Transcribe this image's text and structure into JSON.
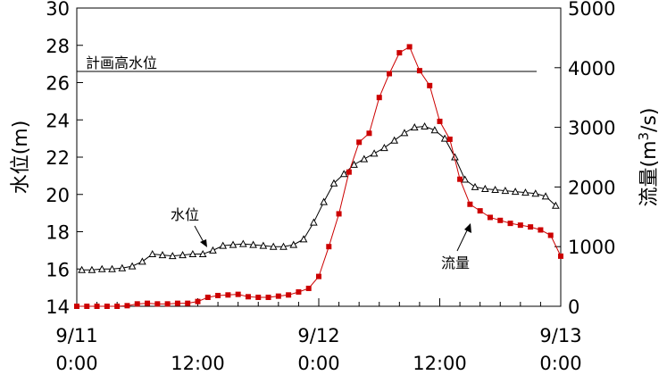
{
  "chart_data": {
    "type": "line",
    "y_left": {
      "label": "水位(m)",
      "min": 14,
      "max": 30,
      "ticks": [
        14,
        16,
        18,
        20,
        22,
        24,
        26,
        28,
        30
      ]
    },
    "y_right": {
      "label_main": "流量(m",
      "label_sup": "3",
      "label_tail": "/s)",
      "min": 0,
      "max": 5000,
      "ticks": [
        0,
        1000,
        2000,
        3000,
        4000,
        5000
      ]
    },
    "x_axis": {
      "min": 0,
      "max": 48,
      "ticks": [
        {
          "x": 0,
          "lines": [
            "9/11",
            "0:00"
          ]
        },
        {
          "x": 12,
          "lines": [
            "",
            "12:00"
          ]
        },
        {
          "x": 24,
          "lines": [
            "9/12",
            "0:00"
          ]
        },
        {
          "x": 36,
          "lines": [
            "",
            "12:00"
          ]
        },
        {
          "x": 48,
          "lines": [
            "9/13",
            "0:00"
          ]
        }
      ]
    },
    "reference_line": {
      "label": "計画高水位",
      "y": 26.6
    },
    "series": [
      {
        "name": "水位",
        "axis": "left",
        "marker": "triangle",
        "color": "#000000",
        "x": [
          0.5,
          1.5,
          2.5,
          3.5,
          4.5,
          5.5,
          6.5,
          7.5,
          8.5,
          9.5,
          10.5,
          11.5,
          12.5,
          13.5,
          14.5,
          15.5,
          16.5,
          17.5,
          18.5,
          19.5,
          20.5,
          21.5,
          22.5,
          23.5,
          24.5,
          25.5,
          26.5,
          27.5,
          28.5,
          29.5,
          30.5,
          31.5,
          32.5,
          33.5,
          34.5,
          35.5,
          36.5,
          37.5,
          38.5,
          39.5,
          40.5,
          41.5,
          42.5,
          43.5,
          44.5,
          45.5,
          46.5,
          47.5
        ],
        "values": [
          15.95,
          15.95,
          16.0,
          16.0,
          16.05,
          16.15,
          16.4,
          16.8,
          16.75,
          16.7,
          16.75,
          16.8,
          16.8,
          17.0,
          17.25,
          17.3,
          17.35,
          17.3,
          17.25,
          17.2,
          17.2,
          17.3,
          17.6,
          18.5,
          19.6,
          20.6,
          21.1,
          21.6,
          21.9,
          22.2,
          22.5,
          22.9,
          23.3,
          23.6,
          23.65,
          23.45,
          23.0,
          22.0,
          20.8,
          20.4,
          20.3,
          20.25,
          20.2,
          20.15,
          20.1,
          20.05,
          19.9,
          19.4
        ]
      },
      {
        "name": "流量",
        "axis": "right",
        "marker": "square",
        "color": "#cc0000",
        "x": [
          0,
          1,
          2,
          3,
          4,
          5,
          6,
          7,
          8,
          9,
          10,
          11,
          12,
          13,
          14,
          15,
          16,
          17,
          18,
          19,
          20,
          21,
          22,
          23,
          24,
          25,
          26,
          27,
          28,
          29,
          30,
          31,
          32,
          33,
          34,
          35,
          36,
          37,
          38,
          39,
          40,
          41,
          42,
          43,
          44,
          45,
          46,
          47,
          48
        ],
        "values": [
          0,
          0,
          0,
          0,
          0,
          10,
          40,
          50,
          40,
          40,
          50,
          50,
          80,
          150,
          180,
          190,
          200,
          160,
          150,
          150,
          170,
          190,
          240,
          300,
          500,
          1000,
          1550,
          2250,
          2750,
          2900,
          3500,
          3900,
          4250,
          4350,
          3950,
          3700,
          3100,
          2800,
          2130,
          1710,
          1600,
          1490,
          1440,
          1390,
          1360,
          1330,
          1280,
          1190,
          840
        ]
      }
    ],
    "annotations": [
      {
        "text": "水位"
      },
      {
        "text": "流量"
      }
    ]
  }
}
